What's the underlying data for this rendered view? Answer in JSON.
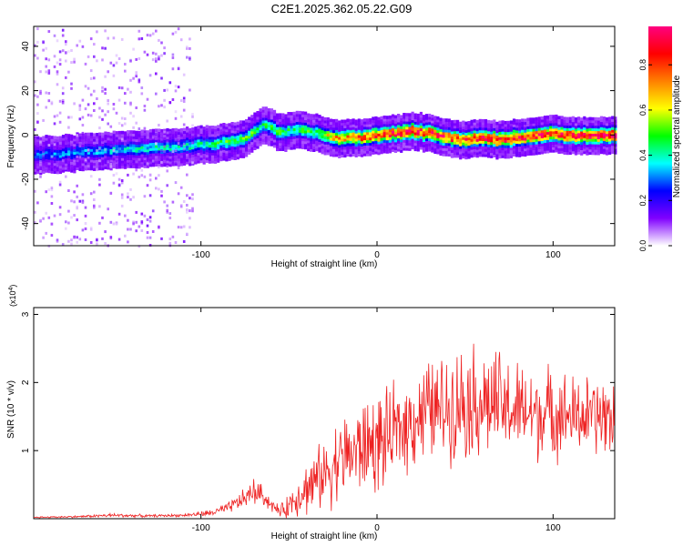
{
  "title": "C2E1.2025.362.05.22.G09",
  "colors": {
    "snr_line": "#ee2222",
    "axis": "#000000",
    "background": "#ffffff"
  },
  "chart_data": [
    {
      "type": "heatmap",
      "name": "spectrogram",
      "xlabel": "Height of straight line (km)",
      "ylabel": "Frequency (Hz)",
      "xlim": [
        -195,
        135
      ],
      "ylim": [
        -50,
        49
      ],
      "x_ticks": [
        -100,
        0,
        100
      ],
      "y_ticks": [
        -40,
        -20,
        0,
        20,
        40
      ],
      "colorbar": {
        "label": "Normalized spectral amplitude",
        "ticks": [
          0.0,
          0.2,
          0.4,
          0.6,
          0.8
        ],
        "range": [
          0,
          0.97
        ],
        "colormap": [
          "#ffffff",
          "#8000ff",
          "#0000ff",
          "#00ffff",
          "#00ff00",
          "#ffff00",
          "#ff8000",
          "#ff0000",
          "#ff0080"
        ]
      },
      "ridge": {
        "x": [
          -195,
          -160,
          -130,
          -110,
          -95,
          -85,
          -75,
          -70,
          -65,
          -60,
          -55,
          -50,
          -45,
          -40,
          -35,
          -30,
          -25,
          -20,
          -10,
          0,
          10,
          20,
          30,
          40,
          50,
          60,
          70,
          80,
          90,
          100,
          110,
          120,
          130
        ],
        "frequency_hz": [
          -9,
          -7,
          -6,
          -5,
          -4,
          -3,
          -1,
          2,
          5,
          3,
          1,
          2,
          3,
          2,
          1,
          0,
          -1,
          -1,
          -1,
          0,
          1,
          2,
          1,
          -1,
          -2,
          -1,
          -2,
          -1,
          0,
          1,
          0,
          0,
          0
        ],
        "amplitude": [
          0.3,
          0.35,
          0.4,
          0.4,
          0.45,
          0.5,
          0.5,
          0.5,
          0.45,
          0.5,
          0.5,
          0.45,
          0.5,
          0.5,
          0.5,
          0.6,
          0.7,
          0.75,
          0.8,
          0.85,
          0.9,
          0.92,
          0.9,
          0.85,
          0.85,
          0.9,
          0.9,
          0.88,
          0.9,
          0.92,
          0.95,
          0.95,
          0.95
        ]
      },
      "noise_region_x": [
        -195,
        -105
      ]
    },
    {
      "type": "line",
      "name": "snr",
      "xlabel": "Height of straight line (km)",
      "ylabel": "SNR (10 * v/v)",
      "y_multiplier": "(x10",
      "y_multiplier_exp": "4",
      "y_multiplier_close": ")",
      "xlim": [
        -195,
        135
      ],
      "ylim": [
        0,
        3.1
      ],
      "x_ticks": [
        -100,
        0,
        100
      ],
      "y_ticks": [
        1,
        2,
        3
      ],
      "series": [
        {
          "name": "SNR",
          "x": [
            -195,
            -170,
            -150,
            -130,
            -110,
            -95,
            -85,
            -75,
            -70,
            -65,
            -60,
            -55,
            -50,
            -45,
            -40,
            -35,
            -30,
            -25,
            -20,
            -15,
            -10,
            -5,
            0,
            5,
            10,
            15,
            20,
            25,
            30,
            35,
            40,
            45,
            50,
            55,
            60,
            65,
            70,
            75,
            80,
            85,
            90,
            95,
            100,
            105,
            110,
            115,
            120,
            125,
            130,
            135
          ],
          "y": [
            0.02,
            0.03,
            0.05,
            0.04,
            0.05,
            0.08,
            0.15,
            0.3,
            0.4,
            0.35,
            0.2,
            0.1,
            0.2,
            0.35,
            0.45,
            0.55,
            0.65,
            0.8,
            0.9,
            0.95,
            1.0,
            1.1,
            1.1,
            1.15,
            1.25,
            1.35,
            1.45,
            1.55,
            1.6,
            1.6,
            1.65,
            1.7,
            1.75,
            1.75,
            1.7,
            1.7,
            1.65,
            1.6,
            1.6,
            1.55,
            1.55,
            1.55,
            1.55,
            1.55,
            1.5,
            1.5,
            1.5,
            1.5,
            1.5,
            1.5
          ],
          "noise_amplitude": [
            0.01,
            0.015,
            0.03,
            0.02,
            0.02,
            0.05,
            0.08,
            0.15,
            0.2,
            0.15,
            0.1,
            0.08,
            0.2,
            0.3,
            0.4,
            0.45,
            0.5,
            0.6,
            0.6,
            0.65,
            0.7,
            0.7,
            0.75,
            0.7,
            0.7,
            0.7,
            0.7,
            0.75,
            0.75,
            0.75,
            0.8,
            0.8,
            0.85,
            0.85,
            0.85,
            0.8,
            0.8,
            0.75,
            0.7,
            0.7,
            0.7,
            0.7,
            0.65,
            0.65,
            0.6,
            0.6,
            0.6,
            0.6,
            0.6,
            0.6
          ]
        }
      ]
    }
  ]
}
